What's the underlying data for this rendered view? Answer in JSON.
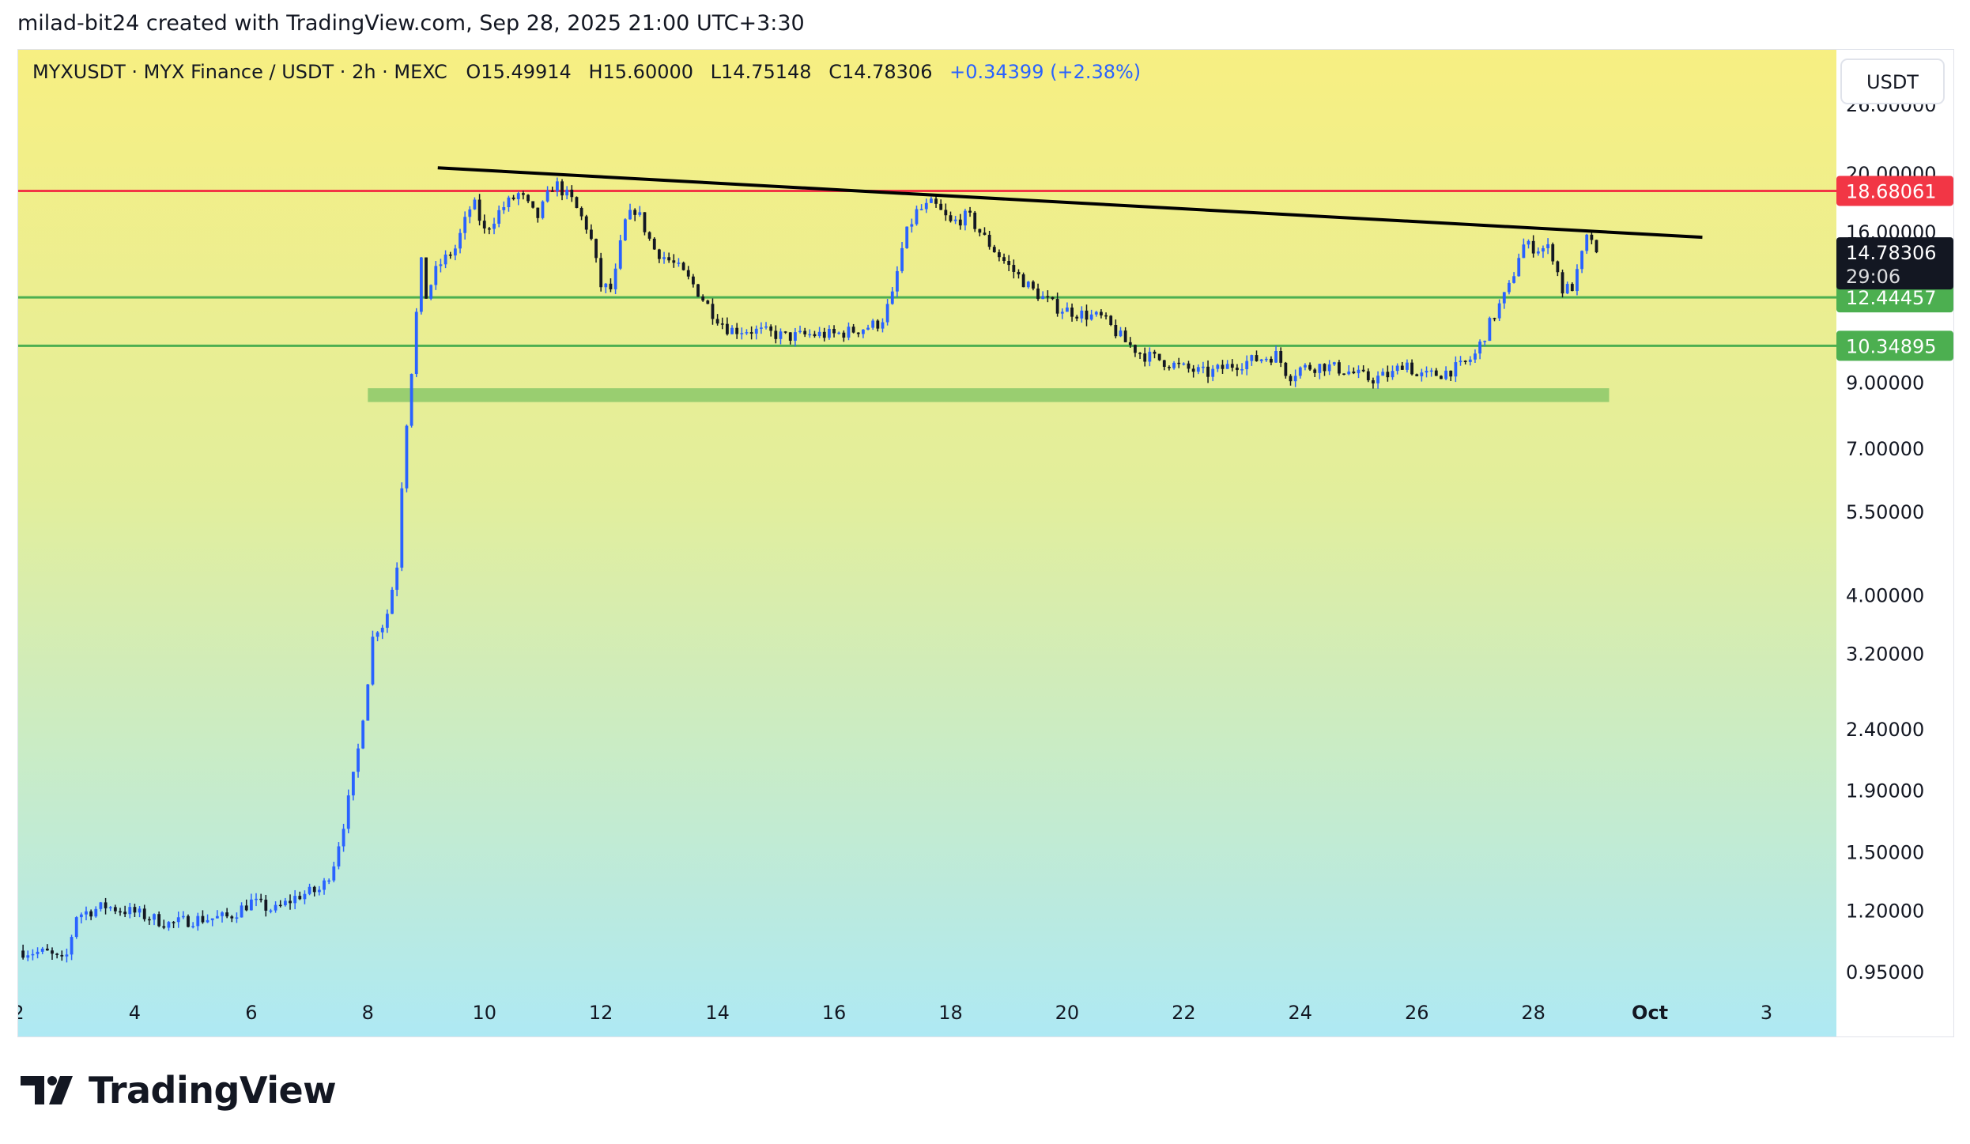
{
  "header": {
    "text": "milad-bit24 created with TradingView.com, Sep 28, 2025 21:00 UTC+3:30"
  },
  "legend": {
    "symbol": "MYXUSDT · MYX Finance / USDT · 2h · MEXC",
    "open_label": "O",
    "open": "15.49914",
    "high_label": "H",
    "high": "15.60000",
    "low_label": "L",
    "low": "14.75148",
    "close_label": "C",
    "close": "14.78306",
    "change": "+0.34399 (+2.38%)"
  },
  "currency_button": {
    "label": "USDT"
  },
  "logo": {
    "text": "TradingView"
  },
  "colors": {
    "up": "#2962ff",
    "down": "#131722",
    "resistance": "#f23645",
    "support": "#4caf50",
    "zone": "#8bc86a",
    "trendline": "#000000",
    "bg_top": "#f7ef82",
    "bg_bottom": "#aee9f4"
  },
  "chart_data": {
    "type": "candlestick",
    "scale": "log",
    "ylim": [
      0.82,
      32
    ],
    "y_ticks": [
      "26.00000",
      "20.00000",
      "16.00000",
      "9.00000",
      "7.00000",
      "5.50000",
      "4.00000",
      "3.20000",
      "2.40000",
      "1.90000",
      "1.50000",
      "1.20000",
      "0.95000"
    ],
    "x_ticks": [
      "2",
      "4",
      "6",
      "8",
      "10",
      "12",
      "14",
      "16",
      "18",
      "20",
      "22",
      "24",
      "26",
      "28",
      "Oct",
      "3"
    ],
    "x_tick_days": [
      2,
      4,
      6,
      8,
      10,
      12,
      14,
      16,
      18,
      20,
      22,
      24,
      26,
      28,
      30,
      32
    ],
    "xlim_days": [
      2,
      33.2
    ],
    "last_price": {
      "value": 14.78306,
      "label": "14.78306",
      "countdown": "29:06"
    },
    "levels": [
      {
        "name": "resistance",
        "value": 18.68061,
        "label": "18.68061"
      },
      {
        "name": "support-upper",
        "value": 12.44457,
        "label": "12.44457"
      },
      {
        "name": "support-lower",
        "value": 10.34895,
        "label": "10.34895"
      }
    ],
    "zone": {
      "day_start": 8,
      "day_end": 29.3,
      "low": 8.35,
      "high": 8.8
    },
    "trendline": {
      "points": [
        [
          9.2,
          20.4
        ],
        [
          30.9,
          15.65
        ]
      ]
    },
    "price_path": [
      [
        2.0,
        1.03
      ],
      [
        2.5,
        1.02
      ],
      [
        2.8,
        0.98
      ],
      [
        3.0,
        1.18
      ],
      [
        3.5,
        1.22
      ],
      [
        4.0,
        1.19
      ],
      [
        4.6,
        1.14
      ],
      [
        5.0,
        1.16
      ],
      [
        5.6,
        1.17
      ],
      [
        6.0,
        1.24
      ],
      [
        6.4,
        1.2
      ],
      [
        6.8,
        1.27
      ],
      [
        7.2,
        1.3
      ],
      [
        7.4,
        1.42
      ],
      [
        7.6,
        1.7
      ],
      [
        7.8,
        2.1
      ],
      [
        8.0,
        2.9
      ],
      [
        8.1,
        3.5
      ],
      [
        8.3,
        3.6
      ],
      [
        8.5,
        4.5
      ],
      [
        8.6,
        6.5
      ],
      [
        8.7,
        8.5
      ],
      [
        8.8,
        10.5
      ],
      [
        8.9,
        14.5
      ],
      [
        9.0,
        12.5
      ],
      [
        9.2,
        14.0
      ],
      [
        9.5,
        15.0
      ],
      [
        9.8,
        18.0
      ],
      [
        10.0,
        16.0
      ],
      [
        10.3,
        17.5
      ],
      [
        10.6,
        18.5
      ],
      [
        10.9,
        16.8
      ],
      [
        11.2,
        19.3
      ],
      [
        11.5,
        18.0
      ],
      [
        11.8,
        16.0
      ],
      [
        12.0,
        13.0
      ],
      [
        12.2,
        12.8
      ],
      [
        12.4,
        16.5
      ],
      [
        12.6,
        17.5
      ],
      [
        12.9,
        15.0
      ],
      [
        13.3,
        14.0
      ],
      [
        13.6,
        13.0
      ],
      [
        13.9,
        11.8
      ],
      [
        14.2,
        11.0
      ],
      [
        14.5,
        11.0
      ],
      [
        14.8,
        10.9
      ],
      [
        15.2,
        10.7
      ],
      [
        15.6,
        10.8
      ],
      [
        16.0,
        10.8
      ],
      [
        16.4,
        11.0
      ],
      [
        16.8,
        11.3
      ],
      [
        17.0,
        12.5
      ],
      [
        17.2,
        15.5
      ],
      [
        17.4,
        17.2
      ],
      [
        17.7,
        17.8
      ],
      [
        18.0,
        16.5
      ],
      [
        18.3,
        17.0
      ],
      [
        18.6,
        15.5
      ],
      [
        19.0,
        14.0
      ],
      [
        19.4,
        12.8
      ],
      [
        19.8,
        12.0
      ],
      [
        20.2,
        11.7
      ],
      [
        20.6,
        11.5
      ],
      [
        21.0,
        10.5
      ],
      [
        21.3,
        10.0
      ],
      [
        21.6,
        9.8
      ],
      [
        22.0,
        9.5
      ],
      [
        22.4,
        9.3
      ],
      [
        22.8,
        9.6
      ],
      [
        23.2,
        9.8
      ],
      [
        23.6,
        10.0
      ],
      [
        23.8,
        9.2
      ],
      [
        24.0,
        9.5
      ],
      [
        24.4,
        9.6
      ],
      [
        24.8,
        9.4
      ],
      [
        25.2,
        9.1
      ],
      [
        25.6,
        9.3
      ],
      [
        25.8,
        9.8
      ],
      [
        26.0,
        9.2
      ],
      [
        26.4,
        9.3
      ],
      [
        26.8,
        9.6
      ],
      [
        27.0,
        10.0
      ],
      [
        27.3,
        11.5
      ],
      [
        27.6,
        13.0
      ],
      [
        27.8,
        15.2
      ],
      [
        28.1,
        15.0
      ],
      [
        28.3,
        15.0
      ],
      [
        28.5,
        12.8
      ],
      [
        28.7,
        13.0
      ],
      [
        28.9,
        15.5
      ],
      [
        29.0,
        15.6
      ],
      [
        29.05,
        14.78306
      ]
    ]
  }
}
